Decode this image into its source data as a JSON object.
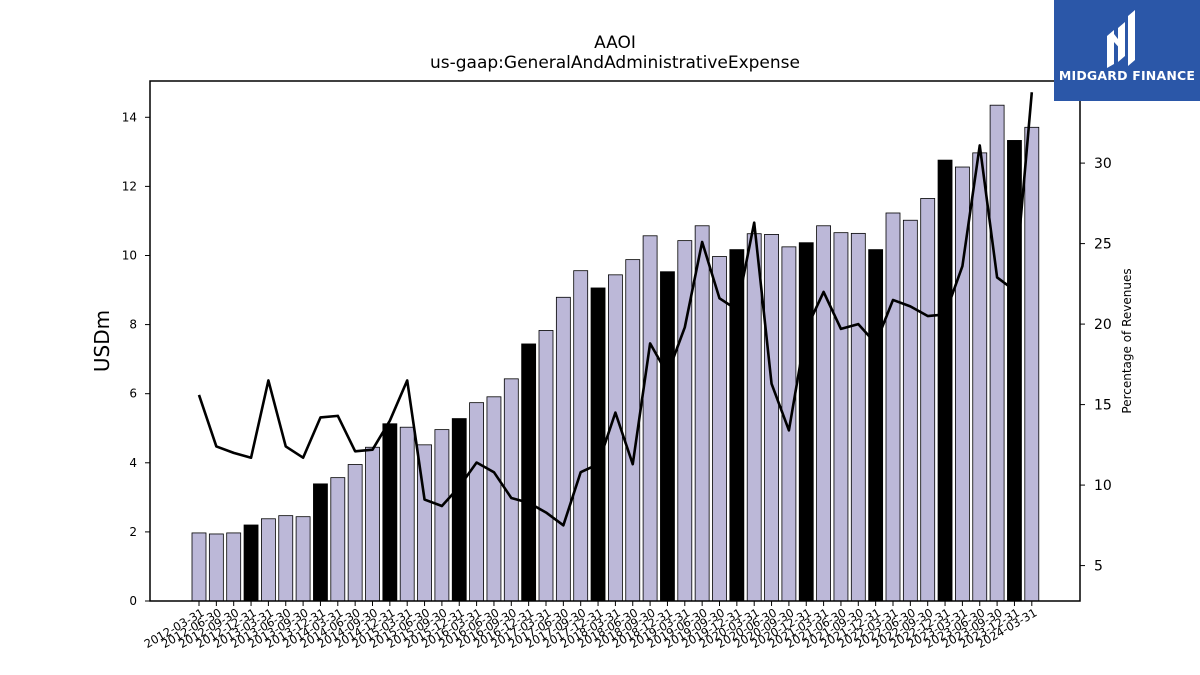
{
  "chart_data": {
    "type": "bar",
    "title": "AAOI",
    "subtitle": "us-gaap:GeneralAndAdministrativeExpense",
    "ylabel": "USDm",
    "y2label": "Percentage of Revenues",
    "ylim": [
      0,
      15.05
    ],
    "y2lim": [
      2.8,
      35.1
    ],
    "yticks": [
      0,
      2,
      4,
      6,
      8,
      10,
      12,
      14
    ],
    "y2ticks": [
      5,
      10,
      15,
      20,
      25,
      30
    ],
    "categories": [
      "2012-03-31",
      "2012-06-30",
      "2012-09-30",
      "2012-12-31",
      "2013-03-31",
      "2013-06-30",
      "2013-09-30",
      "2013-12-31",
      "2014-03-31",
      "2014-06-30",
      "2014-09-30",
      "2014-12-31",
      "2015-03-31",
      "2015-06-30",
      "2015-09-30",
      "2015-12-31",
      "2016-03-31",
      "2016-06-30",
      "2016-09-30",
      "2016-12-31",
      "2017-03-31",
      "2017-06-30",
      "2017-09-30",
      "2017-12-31",
      "2018-03-31",
      "2018-06-30",
      "2018-09-30",
      "2018-12-31",
      "2019-03-31",
      "2019-06-30",
      "2019-09-30",
      "2019-12-31",
      "2020-03-31",
      "2020-06-30",
      "2020-09-30",
      "2020-12-31",
      "2021-03-31",
      "2021-06-30",
      "2021-09-30",
      "2021-12-31",
      "2022-03-31",
      "2022-06-30",
      "2022-09-30",
      "2022-12-31",
      "2023-03-31",
      "2023-06-30",
      "2023-09-30",
      "2023-12-31",
      "2024-03-31"
    ],
    "series": [
      {
        "kind": "bar",
        "values": [
          1.97,
          1.94,
          1.97,
          2.2,
          2.38,
          2.47,
          2.44,
          3.39,
          3.57,
          3.95,
          4.45,
          5.13,
          5.03,
          4.52,
          4.96,
          5.28,
          5.74,
          5.91,
          6.43,
          7.44,
          7.83,
          8.79,
          9.56,
          9.06,
          9.44,
          9.88,
          10.57,
          9.53,
          10.43,
          10.86,
          9.97,
          10.17,
          10.63,
          10.61,
          10.25,
          10.37,
          10.86,
          10.66,
          10.64,
          10.17,
          11.23,
          11.02,
          11.65,
          12.76,
          12.56,
          12.97,
          14.35,
          13.33,
          13.71
        ],
        "highlight": [
          false,
          false,
          false,
          true,
          false,
          false,
          false,
          true,
          false,
          false,
          false,
          true,
          false,
          false,
          false,
          true,
          false,
          false,
          false,
          true,
          false,
          false,
          false,
          true,
          false,
          false,
          false,
          true,
          false,
          false,
          false,
          true,
          false,
          false,
          false,
          true,
          false,
          false,
          false,
          true,
          false,
          false,
          false,
          true,
          false,
          false,
          false,
          true,
          false
        ],
        "color": "#bcb8d8",
        "highlight_color": "#000000"
      },
      {
        "kind": "line",
        "axis": "right",
        "values": [
          15.6,
          12.4,
          12.0,
          11.7,
          16.5,
          12.4,
          11.7,
          14.2,
          14.3,
          12.1,
          12.2,
          14.0,
          16.5,
          9.1,
          8.7,
          9.9,
          11.4,
          10.8,
          9.2,
          8.9,
          8.3,
          7.5,
          10.8,
          11.3,
          14.5,
          11.3,
          18.8,
          16.9,
          19.8,
          25.1,
          21.6,
          20.9,
          26.3,
          16.3,
          13.4,
          19.7,
          22.0,
          19.7,
          20.0,
          18.8,
          21.5,
          21.1,
          20.5,
          20.6,
          23.6,
          31.1,
          22.9,
          22.1,
          34.4
        ],
        "color": "#000000"
      }
    ]
  },
  "logo": {
    "text": "MIDGARD FINANCE",
    "color": "#2b57a8"
  }
}
